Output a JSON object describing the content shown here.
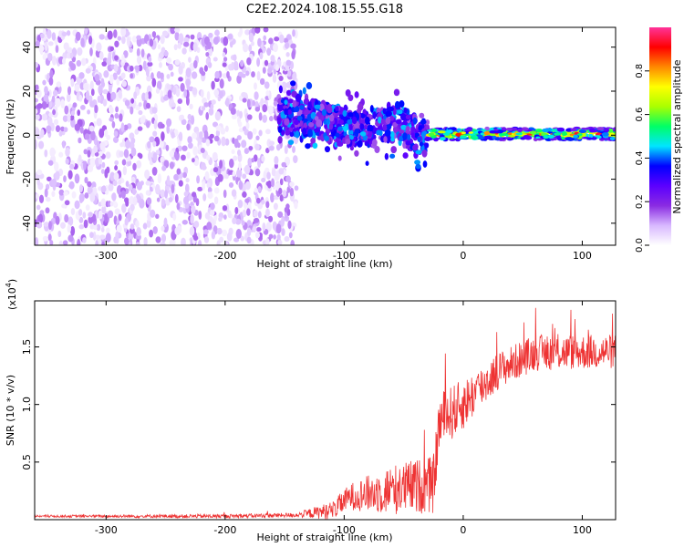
{
  "title": "C2E2.2024.108.15.55.G18",
  "chart_data": [
    {
      "type": "heatmap",
      "xlabel": "Height of straight line (km)",
      "ylabel": "Frequency (Hz)",
      "xlim": [
        -360,
        128
      ],
      "ylim": [
        -50,
        49
      ],
      "x_ticks": [
        -300,
        -200,
        -100,
        0,
        100
      ],
      "y_ticks": [
        -40,
        -20,
        0,
        20,
        40
      ],
      "colorbar": {
        "label": "Normalized spectral amplitude",
        "range": [
          0,
          1
        ],
        "ticks": [
          0.0,
          0.2,
          0.4,
          0.6,
          0.8
        ],
        "colors": [
          "#ffffff",
          "#d8b8ff",
          "#8a2be2",
          "#5b00ff",
          "#0000ff",
          "#00e5ff",
          "#00ff66",
          "#aaff00",
          "#ffff00",
          "#ff8800",
          "#ff0000",
          "#ff3399"
        ]
      },
      "regions": [
        {
          "name": "noise",
          "x_range": [
            -360,
            -140
          ],
          "freq_range": [
            -50,
            48
          ],
          "amplitude_range": [
            0.02,
            0.15
          ]
        },
        {
          "name": "transition",
          "x_range": [
            -155,
            -30
          ],
          "freq_center": [
            8,
            8,
            5,
            3,
            5,
            -2
          ],
          "amplitude_range": [
            0.15,
            0.45
          ]
        },
        {
          "name": "signal",
          "x_range": [
            -30,
            128
          ],
          "freq_center": 0.5,
          "amplitude_range": [
            0.4,
            0.98
          ]
        }
      ]
    },
    {
      "type": "line",
      "xlabel": "Height of straight line (km)",
      "ylabel": "SNR (10 * v/v)",
      "y_scale_label": "(x10",
      "y_scale_exponent": "4",
      "xlim": [
        -360,
        128
      ],
      "ylim": [
        0,
        19000
      ],
      "x_ticks": [
        -300,
        -200,
        -100,
        0,
        100
      ],
      "y_ticks": [
        {
          "value": 5000,
          "label": "0.5"
        },
        {
          "value": 10000,
          "label": "1.0"
        },
        {
          "value": 15000,
          "label": "1.5"
        }
      ],
      "color": "#ee3333",
      "profile": [
        {
          "x": -360,
          "y": 300
        },
        {
          "x": -200,
          "y": 300
        },
        {
          "x": -140,
          "y": 400
        },
        {
          "x": -110,
          "y": 800
        },
        {
          "x": -95,
          "y": 2000
        },
        {
          "x": -60,
          "y": 2600
        },
        {
          "x": -40,
          "y": 2900
        },
        {
          "x": -25,
          "y": 3000
        },
        {
          "x": -20,
          "y": 8500
        },
        {
          "x": 0,
          "y": 10000
        },
        {
          "x": 30,
          "y": 13000
        },
        {
          "x": 60,
          "y": 14500
        },
        {
          "x": 128,
          "y": 14600
        }
      ],
      "noise_envelope": [
        {
          "x": -360,
          "y": 100
        },
        {
          "x": -140,
          "y": 200
        },
        {
          "x": -100,
          "y": 1000
        },
        {
          "x": -60,
          "y": 2200
        },
        {
          "x": -25,
          "y": 2500
        },
        {
          "x": -15,
          "y": 2500
        },
        {
          "x": 30,
          "y": 1600
        },
        {
          "x": 128,
          "y": 1500
        }
      ]
    }
  ]
}
